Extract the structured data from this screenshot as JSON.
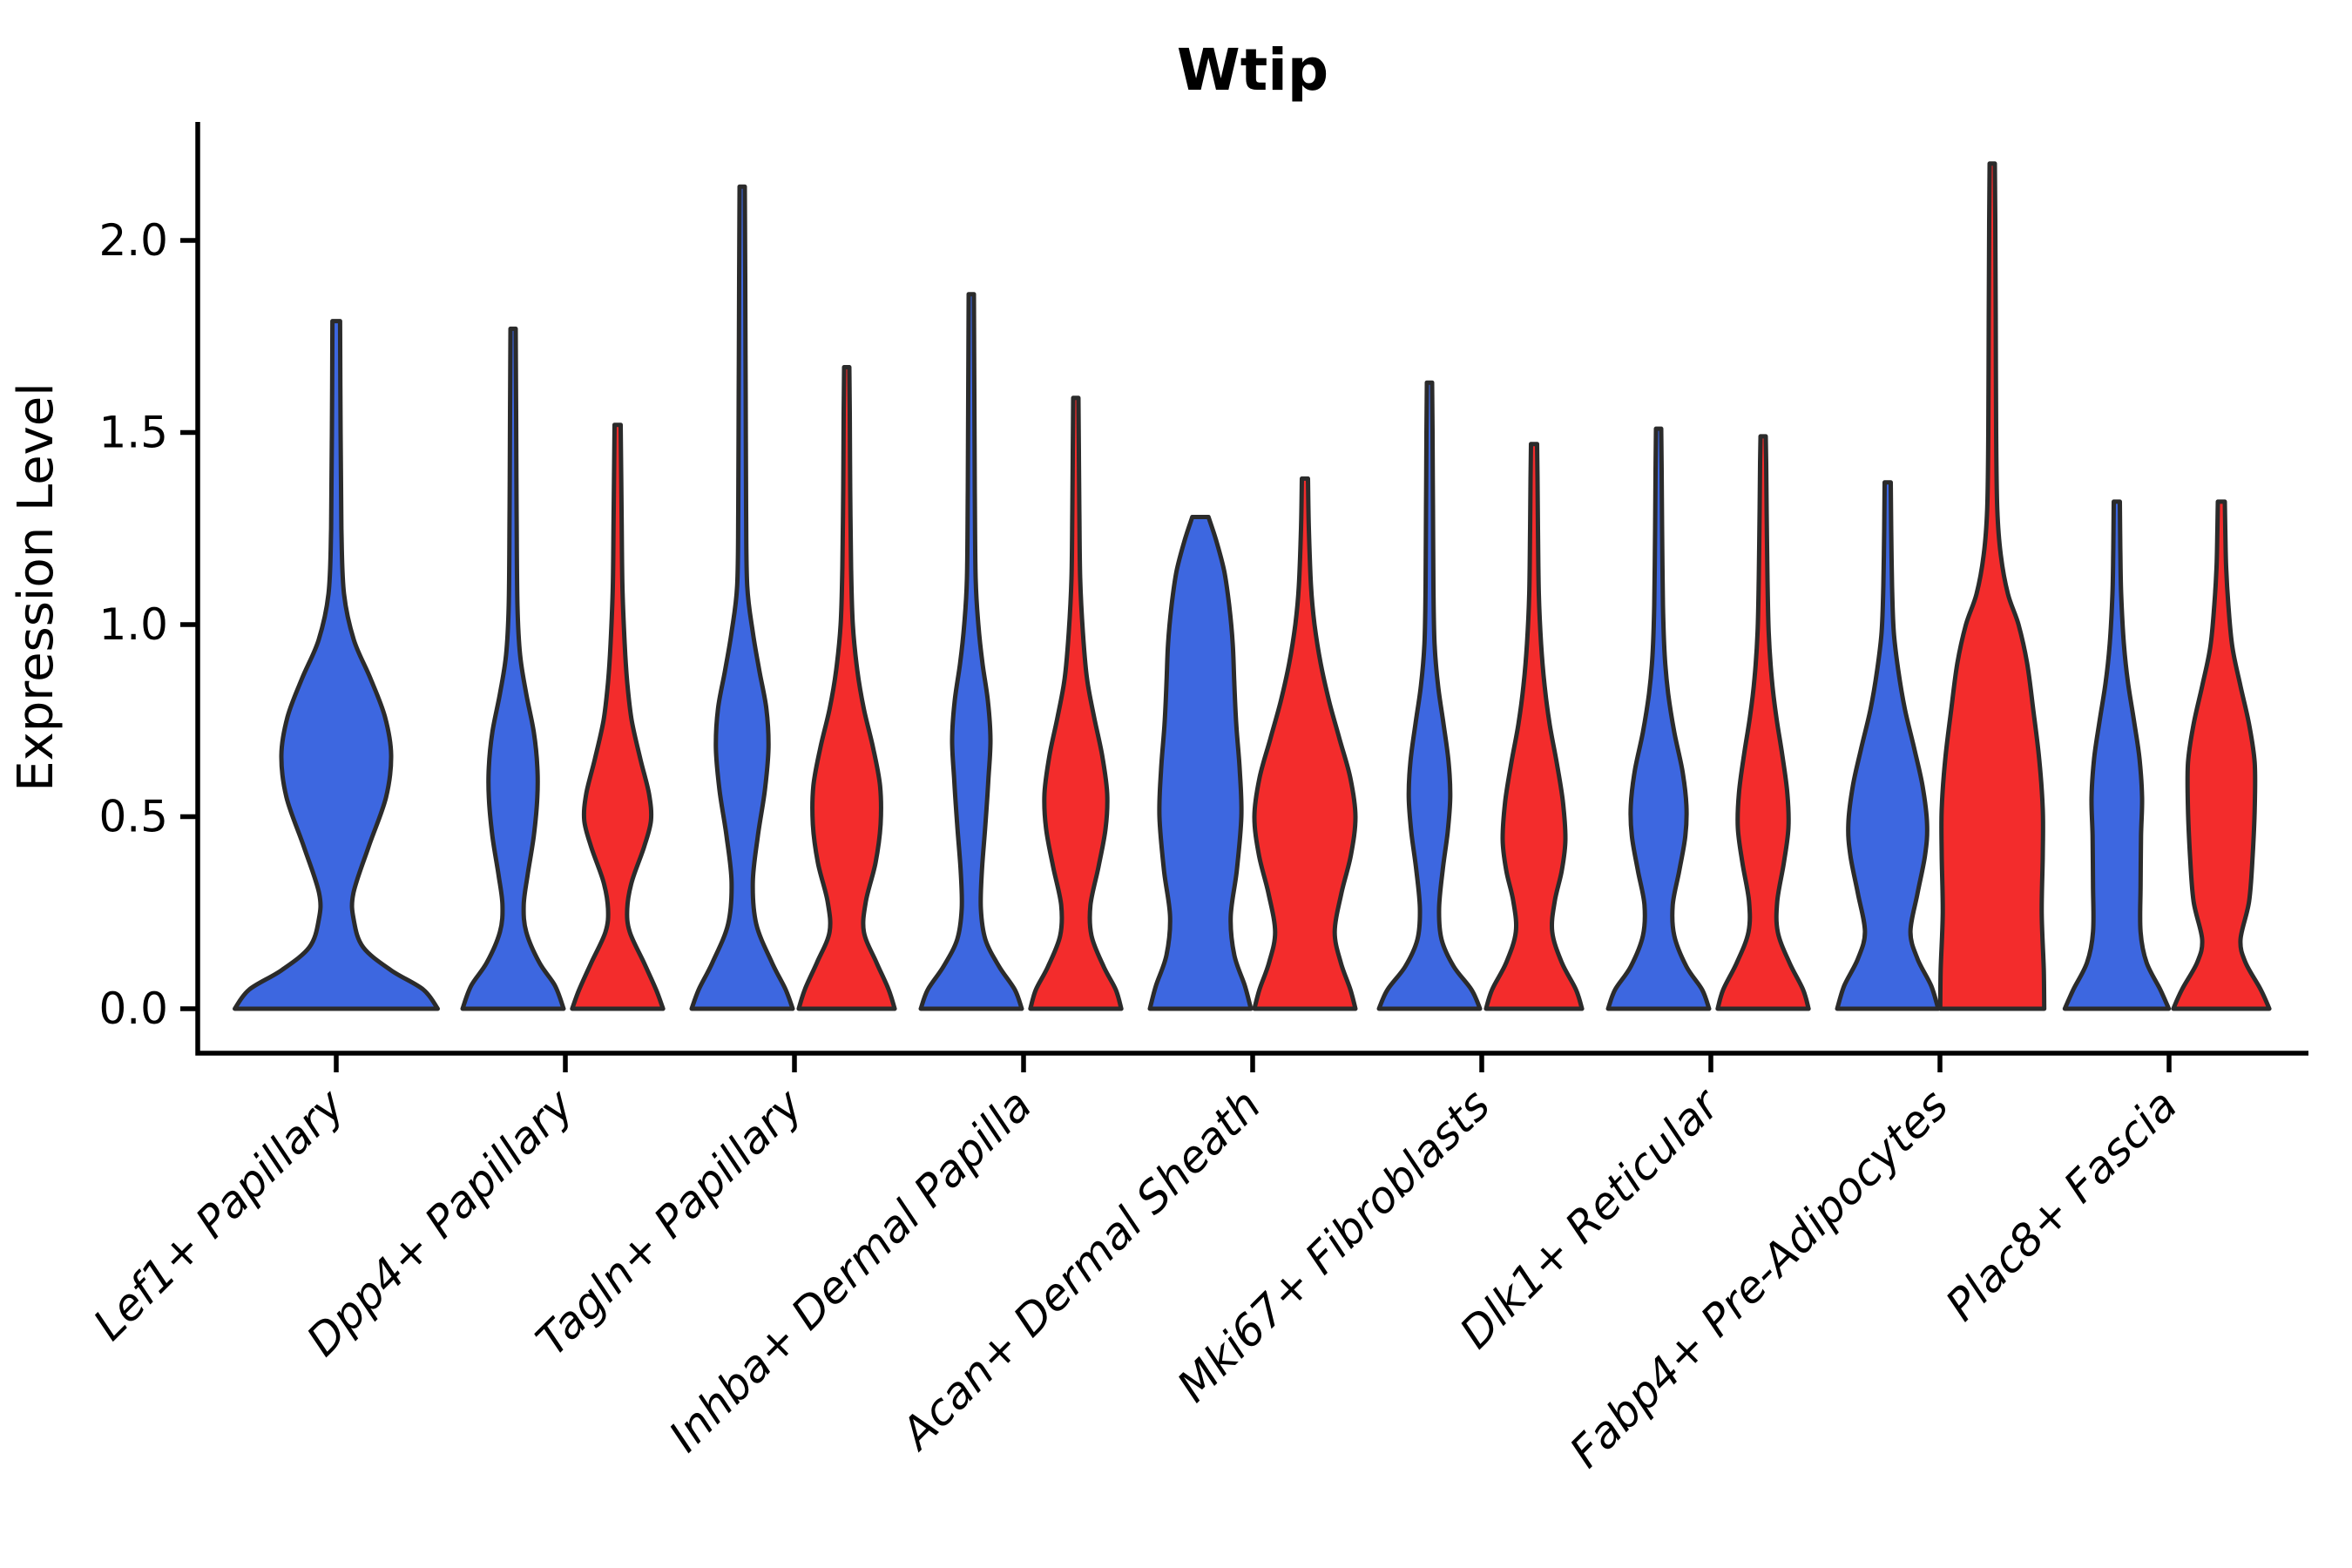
{
  "chart_data": {
    "type": "violin",
    "title": "Wtip",
    "xlabel": "",
    "ylabel": "Expression Level",
    "yticks": [
      0.0,
      0.5,
      1.0,
      1.5,
      2.0
    ],
    "ytick_labels": [
      "0.0",
      "0.5",
      "1.0",
      "1.5",
      "2.0"
    ],
    "ylim": [
      0.0,
      2.31
    ],
    "grid": false,
    "legend_shown": false,
    "split_colors": {
      "blue": "#3D67E0",
      "red": "#F32C2C"
    },
    "outline_color": "#2B2B2B",
    "categories": [
      "Lef1+ Papillary",
      "Dpp4+ Papillary",
      "Tagln+ Papillary",
      "Inhba+ Dermal Papilla",
      "Acan+ Dermal Sheath",
      "Mki67+ Fibroblasts",
      "Dlk1+ Reticular",
      "Fabp4+ Pre-Adipocytes",
      "Plac8+ Fascia"
    ],
    "violins": [
      {
        "category": "Lef1+ Papillary",
        "side": "single",
        "color_key": "blue",
        "max_expression": 1.79,
        "width_scale": 2.05,
        "profile": [
          [
            0,
            0.98
          ],
          [
            0.05,
            0.84
          ],
          [
            0.1,
            0.53
          ],
          [
            0.16,
            0.26
          ],
          [
            0.23,
            0.17
          ],
          [
            0.3,
            0.165
          ],
          [
            0.42,
            0.31
          ],
          [
            0.55,
            0.48
          ],
          [
            0.66,
            0.53
          ],
          [
            0.76,
            0.47
          ],
          [
            0.86,
            0.33
          ],
          [
            0.96,
            0.17
          ],
          [
            1.08,
            0.075
          ],
          [
            1.25,
            0.05
          ],
          [
            1.5,
            0.042
          ],
          [
            1.79,
            0.037
          ]
        ]
      },
      {
        "category": "Dpp4+ Papillary",
        "side": "blue",
        "color_key": "blue",
        "max_expression": 1.77,
        "width_scale": 1,
        "profile": [
          [
            0,
            1.0
          ],
          [
            0.06,
            0.83
          ],
          [
            0.12,
            0.52
          ],
          [
            0.2,
            0.26
          ],
          [
            0.27,
            0.21
          ],
          [
            0.35,
            0.29
          ],
          [
            0.45,
            0.41
          ],
          [
            0.55,
            0.48
          ],
          [
            0.63,
            0.48
          ],
          [
            0.72,
            0.41
          ],
          [
            0.82,
            0.26
          ],
          [
            0.92,
            0.14
          ],
          [
            1.05,
            0.086
          ],
          [
            1.3,
            0.069
          ],
          [
            1.55,
            0.06
          ],
          [
            1.77,
            0.052
          ]
        ]
      },
      {
        "category": "Dpp4+ Papillary",
        "side": "red",
        "color_key": "red",
        "max_expression": 1.52,
        "width_scale": 1,
        "profile": [
          [
            0,
            0.9
          ],
          [
            0.05,
            0.76
          ],
          [
            0.12,
            0.52
          ],
          [
            0.2,
            0.24
          ],
          [
            0.26,
            0.19
          ],
          [
            0.33,
            0.28
          ],
          [
            0.42,
            0.52
          ],
          [
            0.49,
            0.66
          ],
          [
            0.56,
            0.62
          ],
          [
            0.65,
            0.45
          ],
          [
            0.75,
            0.28
          ],
          [
            0.85,
            0.19
          ],
          [
            0.95,
            0.14
          ],
          [
            1.1,
            0.095
          ],
          [
            1.3,
            0.078
          ],
          [
            1.52,
            0.06
          ]
        ]
      },
      {
        "category": "Tagln+ Papillary",
        "side": "blue",
        "color_key": "blue",
        "max_expression": 2.14,
        "width_scale": 1,
        "profile": [
          [
            0,
            1.0
          ],
          [
            0.05,
            0.86
          ],
          [
            0.12,
            0.59
          ],
          [
            0.22,
            0.28
          ],
          [
            0.33,
            0.21
          ],
          [
            0.45,
            0.31
          ],
          [
            0.57,
            0.45
          ],
          [
            0.68,
            0.52
          ],
          [
            0.78,
            0.48
          ],
          [
            0.88,
            0.34
          ],
          [
            0.98,
            0.21
          ],
          [
            1.1,
            0.1
          ],
          [
            1.3,
            0.078
          ],
          [
            1.6,
            0.069
          ],
          [
            1.9,
            0.06
          ],
          [
            2.14,
            0.052
          ]
        ]
      },
      {
        "category": "Tagln+ Papillary",
        "side": "red",
        "color_key": "red",
        "max_expression": 1.67,
        "width_scale": 1,
        "profile": [
          [
            0,
            0.95
          ],
          [
            0.05,
            0.83
          ],
          [
            0.12,
            0.59
          ],
          [
            0.2,
            0.34
          ],
          [
            0.28,
            0.38
          ],
          [
            0.38,
            0.57
          ],
          [
            0.48,
            0.67
          ],
          [
            0.58,
            0.66
          ],
          [
            0.68,
            0.52
          ],
          [
            0.78,
            0.34
          ],
          [
            0.88,
            0.21
          ],
          [
            1.0,
            0.12
          ],
          [
            1.15,
            0.086
          ],
          [
            1.35,
            0.069
          ],
          [
            1.55,
            0.06
          ],
          [
            1.67,
            0.052
          ]
        ]
      },
      {
        "category": "Inhba+ Dermal Papilla",
        "side": "blue",
        "color_key": "blue",
        "max_expression": 1.86,
        "width_scale": 1,
        "profile": [
          [
            0,
            1.0
          ],
          [
            0.05,
            0.86
          ],
          [
            0.11,
            0.55
          ],
          [
            0.18,
            0.28
          ],
          [
            0.26,
            0.19
          ],
          [
            0.36,
            0.21
          ],
          [
            0.48,
            0.28
          ],
          [
            0.6,
            0.34
          ],
          [
            0.7,
            0.38
          ],
          [
            0.8,
            0.33
          ],
          [
            0.9,
            0.22
          ],
          [
            1.0,
            0.14
          ],
          [
            1.12,
            0.086
          ],
          [
            1.35,
            0.069
          ],
          [
            1.6,
            0.06
          ],
          [
            1.86,
            0.052
          ]
        ]
      },
      {
        "category": "Inhba+ Dermal Papilla",
        "side": "red",
        "color_key": "red",
        "max_expression": 1.59,
        "width_scale": 1,
        "profile": [
          [
            0,
            0.9
          ],
          [
            0.05,
            0.79
          ],
          [
            0.11,
            0.55
          ],
          [
            0.19,
            0.31
          ],
          [
            0.27,
            0.29
          ],
          [
            0.37,
            0.45
          ],
          [
            0.47,
            0.59
          ],
          [
            0.56,
            0.62
          ],
          [
            0.66,
            0.52
          ],
          [
            0.76,
            0.36
          ],
          [
            0.86,
            0.22
          ],
          [
            0.98,
            0.14
          ],
          [
            1.12,
            0.086
          ],
          [
            1.3,
            0.069
          ],
          [
            1.45,
            0.06
          ],
          [
            1.59,
            0.052
          ]
        ]
      },
      {
        "category": "Acan+ Dermal Sheath",
        "side": "blue",
        "color_key": "blue",
        "max_expression": 1.28,
        "width_scale": 1,
        "profile": [
          [
            0,
            1.0
          ],
          [
            0.06,
            0.88
          ],
          [
            0.14,
            0.67
          ],
          [
            0.24,
            0.6
          ],
          [
            0.36,
            0.72
          ],
          [
            0.5,
            0.81
          ],
          [
            0.62,
            0.78
          ],
          [
            0.74,
            0.71
          ],
          [
            0.85,
            0.67
          ],
          [
            0.95,
            0.64
          ],
          [
            1.05,
            0.57
          ],
          [
            1.14,
            0.47
          ],
          [
            1.22,
            0.31
          ],
          [
            1.28,
            0.16
          ]
        ]
      },
      {
        "category": "Acan+ Dermal Sheath",
        "side": "red",
        "color_key": "red",
        "max_expression": 1.38,
        "width_scale": 1,
        "profile": [
          [
            0,
            1.0
          ],
          [
            0.05,
            0.9
          ],
          [
            0.12,
            0.71
          ],
          [
            0.2,
            0.59
          ],
          [
            0.3,
            0.72
          ],
          [
            0.4,
            0.91
          ],
          [
            0.5,
            1.0
          ],
          [
            0.6,
            0.9
          ],
          [
            0.7,
            0.69
          ],
          [
            0.8,
            0.48
          ],
          [
            0.9,
            0.31
          ],
          [
            1.0,
            0.19
          ],
          [
            1.1,
            0.12
          ],
          [
            1.25,
            0.078
          ],
          [
            1.38,
            0.06
          ]
        ]
      },
      {
        "category": "Mki67+ Fibroblasts",
        "side": "blue",
        "color_key": "blue",
        "max_expression": 1.63,
        "width_scale": 1,
        "profile": [
          [
            0,
            1.0
          ],
          [
            0.05,
            0.83
          ],
          [
            0.11,
            0.48
          ],
          [
            0.18,
            0.24
          ],
          [
            0.26,
            0.19
          ],
          [
            0.36,
            0.26
          ],
          [
            0.46,
            0.36
          ],
          [
            0.55,
            0.41
          ],
          [
            0.64,
            0.38
          ],
          [
            0.74,
            0.28
          ],
          [
            0.84,
            0.17
          ],
          [
            0.95,
            0.1
          ],
          [
            1.1,
            0.078
          ],
          [
            1.3,
            0.069
          ],
          [
            1.5,
            0.06
          ],
          [
            1.63,
            0.052
          ]
        ]
      },
      {
        "category": "Mki67+ Fibroblasts",
        "side": "red",
        "color_key": "red",
        "max_expression": 1.47,
        "width_scale": 1,
        "profile": [
          [
            0,
            0.95
          ],
          [
            0.05,
            0.83
          ],
          [
            0.12,
            0.55
          ],
          [
            0.2,
            0.36
          ],
          [
            0.28,
            0.41
          ],
          [
            0.36,
            0.55
          ],
          [
            0.44,
            0.62
          ],
          [
            0.54,
            0.57
          ],
          [
            0.64,
            0.45
          ],
          [
            0.74,
            0.31
          ],
          [
            0.84,
            0.21
          ],
          [
            0.95,
            0.14
          ],
          [
            1.08,
            0.095
          ],
          [
            1.25,
            0.078
          ],
          [
            1.38,
            0.069
          ],
          [
            1.47,
            0.06
          ]
        ]
      },
      {
        "category": "Dlk1+ Reticular",
        "side": "blue",
        "color_key": "blue",
        "max_expression": 1.51,
        "width_scale": 1,
        "profile": [
          [
            0,
            1.0
          ],
          [
            0.05,
            0.86
          ],
          [
            0.11,
            0.55
          ],
          [
            0.19,
            0.31
          ],
          [
            0.27,
            0.28
          ],
          [
            0.36,
            0.41
          ],
          [
            0.45,
            0.53
          ],
          [
            0.53,
            0.55
          ],
          [
            0.62,
            0.47
          ],
          [
            0.72,
            0.31
          ],
          [
            0.82,
            0.19
          ],
          [
            0.92,
            0.12
          ],
          [
            1.05,
            0.086
          ],
          [
            1.25,
            0.069
          ],
          [
            1.4,
            0.06
          ],
          [
            1.51,
            0.052
          ]
        ]
      },
      {
        "category": "Dlk1+ Reticular",
        "side": "red",
        "color_key": "red",
        "max_expression": 1.49,
        "width_scale": 1,
        "profile": [
          [
            0,
            0.9
          ],
          [
            0.05,
            0.79
          ],
          [
            0.12,
            0.52
          ],
          [
            0.2,
            0.29
          ],
          [
            0.28,
            0.28
          ],
          [
            0.38,
            0.41
          ],
          [
            0.47,
            0.5
          ],
          [
            0.56,
            0.48
          ],
          [
            0.66,
            0.38
          ],
          [
            0.76,
            0.26
          ],
          [
            0.86,
            0.17
          ],
          [
            0.98,
            0.11
          ],
          [
            1.12,
            0.086
          ],
          [
            1.3,
            0.069
          ],
          [
            1.42,
            0.06
          ],
          [
            1.49,
            0.052
          ]
        ]
      },
      {
        "category": "Fabp4+ Pre-Adipocytes",
        "side": "blue",
        "color_key": "blue",
        "max_expression": 1.37,
        "width_scale": 1,
        "profile": [
          [
            0,
            1.0
          ],
          [
            0.06,
            0.86
          ],
          [
            0.13,
            0.59
          ],
          [
            0.2,
            0.45
          ],
          [
            0.3,
            0.59
          ],
          [
            0.4,
            0.74
          ],
          [
            0.48,
            0.78
          ],
          [
            0.58,
            0.69
          ],
          [
            0.68,
            0.52
          ],
          [
            0.78,
            0.34
          ],
          [
            0.88,
            0.21
          ],
          [
            0.98,
            0.12
          ],
          [
            1.1,
            0.086
          ],
          [
            1.25,
            0.069
          ],
          [
            1.37,
            0.06
          ]
        ]
      },
      {
        "category": "Fabp4+ Pre-Adipocytes",
        "side": "red",
        "color_key": "red",
        "max_expression": 2.2,
        "width_scale": 1,
        "profile": [
          [
            0,
            1.03
          ],
          [
            0.1,
            1.02
          ],
          [
            0.25,
            0.98
          ],
          [
            0.4,
            1.0
          ],
          [
            0.52,
            1.0
          ],
          [
            0.65,
            0.93
          ],
          [
            0.78,
            0.81
          ],
          [
            0.9,
            0.69
          ],
          [
            1.0,
            0.52
          ],
          [
            1.08,
            0.31
          ],
          [
            1.18,
            0.17
          ],
          [
            1.3,
            0.1
          ],
          [
            1.5,
            0.078
          ],
          [
            1.8,
            0.069
          ],
          [
            2.05,
            0.06
          ],
          [
            2.2,
            0.052
          ]
        ]
      },
      {
        "category": "Plac8+ Fascia",
        "side": "blue",
        "color_key": "blue",
        "max_expression": 1.32,
        "width_scale": 1,
        "profile": [
          [
            0,
            1.03
          ],
          [
            0.05,
            0.86
          ],
          [
            0.12,
            0.59
          ],
          [
            0.2,
            0.47
          ],
          [
            0.32,
            0.47
          ],
          [
            0.45,
            0.48
          ],
          [
            0.55,
            0.5
          ],
          [
            0.65,
            0.45
          ],
          [
            0.75,
            0.34
          ],
          [
            0.85,
            0.22
          ],
          [
            0.95,
            0.14
          ],
          [
            1.08,
            0.086
          ],
          [
            1.2,
            0.069
          ],
          [
            1.32,
            0.06
          ]
        ]
      },
      {
        "category": "Plac8+ Fascia",
        "side": "red",
        "color_key": "red",
        "max_expression": 1.32,
        "width_scale": 1,
        "profile": [
          [
            0,
            0.95
          ],
          [
            0.05,
            0.78
          ],
          [
            0.12,
            0.48
          ],
          [
            0.18,
            0.38
          ],
          [
            0.28,
            0.55
          ],
          [
            0.4,
            0.62
          ],
          [
            0.52,
            0.66
          ],
          [
            0.64,
            0.66
          ],
          [
            0.74,
            0.55
          ],
          [
            0.84,
            0.38
          ],
          [
            0.94,
            0.22
          ],
          [
            1.05,
            0.14
          ],
          [
            1.15,
            0.095
          ],
          [
            1.25,
            0.078
          ],
          [
            1.32,
            0.069
          ]
        ]
      }
    ]
  }
}
